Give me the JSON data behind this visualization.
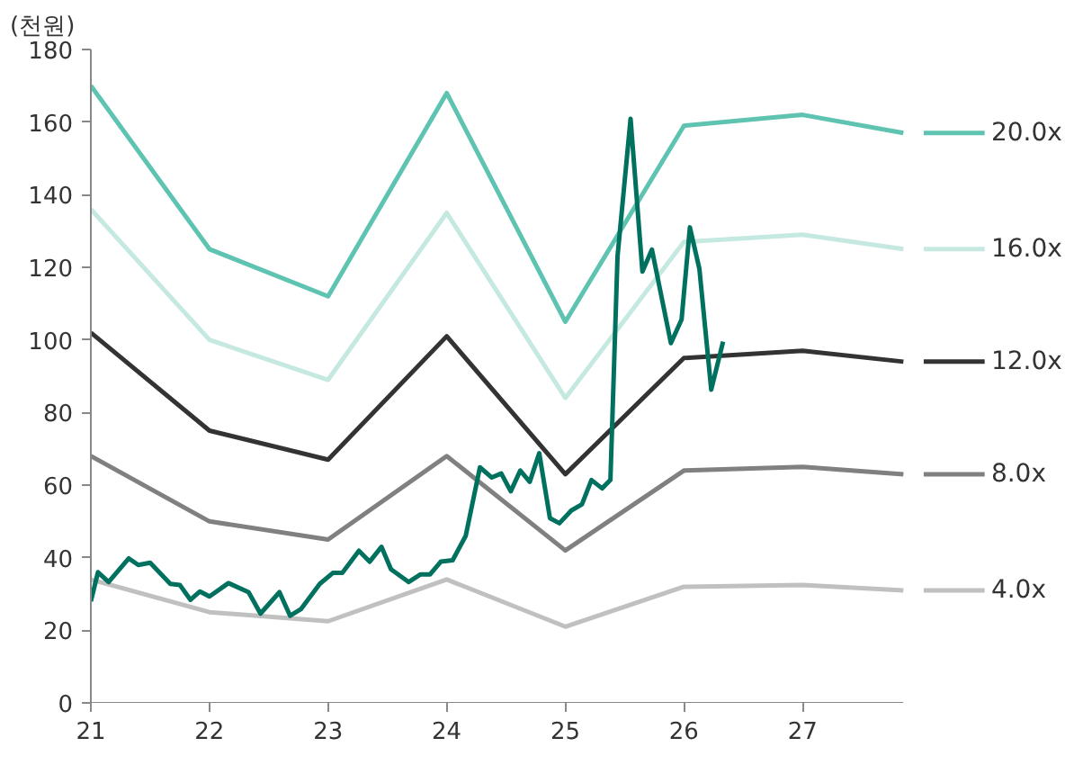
{
  "chart_data": {
    "type": "line",
    "ylabel": "(천원)",
    "xlim": [
      21,
      27.85
    ],
    "ylim": [
      0,
      180
    ],
    "xticks": [
      21,
      22,
      23,
      24,
      25,
      26,
      27
    ],
    "yticks": [
      0,
      20,
      40,
      60,
      80,
      100,
      120,
      140,
      160,
      180
    ],
    "grid": false,
    "legend": "right",
    "marker": "none",
    "line_style": "solid",
    "series": [
      {
        "name": "20.0x",
        "color": "#5ec4b1",
        "x": [
          21,
          22,
          23,
          24,
          25,
          26,
          27,
          27.85
        ],
        "values": [
          170,
          125,
          112,
          168,
          105,
          159,
          162,
          157
        ]
      },
      {
        "name": "16.0x",
        "color": "#c5e9e1",
        "x": [
          21,
          22,
          23,
          24,
          25,
          26,
          27,
          27.85
        ],
        "values": [
          136,
          100,
          89,
          135,
          84,
          127,
          129,
          125
        ]
      },
      {
        "name": "12.0x",
        "color": "#333333",
        "x": [
          21,
          22,
          23,
          24,
          25,
          26,
          27,
          27.85
        ],
        "values": [
          102,
          75,
          67,
          101,
          63,
          95,
          97,
          94
        ]
      },
      {
        "name": "8.0x",
        "color": "#808080",
        "x": [
          21,
          22,
          23,
          24,
          25,
          26,
          27,
          27.85
        ],
        "values": [
          68,
          50,
          45,
          68,
          42,
          64,
          65,
          63
        ]
      },
      {
        "name": "4.0x",
        "color": "#c0c0c0",
        "x": [
          21,
          22,
          23,
          24,
          25,
          26,
          27,
          27.85
        ],
        "values": [
          34,
          25,
          22.5,
          34,
          21,
          32,
          32.5,
          31
        ]
      },
      {
        "color": "#00705f",
        "x": [
          21.0,
          21.06,
          21.15,
          21.32,
          21.4,
          21.5,
          21.67,
          21.75,
          21.84,
          21.92,
          22.0,
          22.16,
          22.33,
          22.43,
          22.59,
          22.68,
          22.77,
          22.93,
          23.04,
          23.12,
          23.26,
          23.35,
          23.45,
          23.53,
          23.68,
          23.78,
          23.86,
          23.95,
          24.05,
          24.16,
          24.28,
          24.38,
          24.46,
          24.54,
          24.62,
          24.7,
          24.78,
          24.87,
          24.95,
          25.05,
          25.14,
          25.22,
          25.31,
          25.38,
          25.44,
          25.55,
          25.65,
          25.73,
          25.89,
          25.98,
          26.05,
          26.13,
          26.23,
          26.33
        ],
        "values": [
          28,
          36,
          33.3,
          39.8,
          38,
          38.6,
          32.8,
          32.5,
          28.4,
          30.7,
          29.3,
          33,
          30.5,
          24.6,
          30.5,
          24,
          25.8,
          32.8,
          35.8,
          35.8,
          41.9,
          38.9,
          43,
          36.8,
          33.3,
          35.4,
          35.4,
          38.9,
          39.3,
          46,
          64.9,
          62.1,
          63.2,
          58.3,
          64,
          60.9,
          68.8,
          50.9,
          49.5,
          53,
          54.7,
          61.4,
          59.1,
          61.4,
          123,
          160.9,
          118.8,
          124.9,
          99.1,
          105.6,
          131,
          119.6,
          86.3,
          99.5
        ]
      }
    ]
  }
}
